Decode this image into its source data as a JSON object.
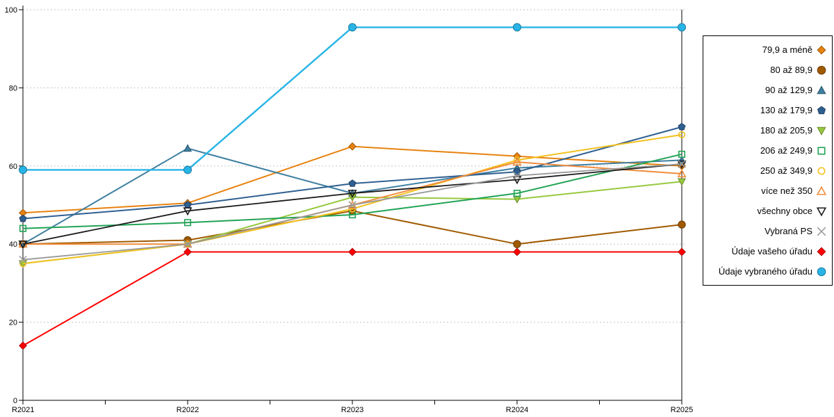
{
  "chart_data": {
    "type": "line",
    "title": "",
    "xlabel": "",
    "ylabel": "",
    "x_categories": [
      "R2021",
      "R2022",
      "R2023",
      "R2024",
      "R2025"
    ],
    "ylim": [
      0,
      100
    ],
    "yticks": [
      0,
      20,
      40,
      60,
      80,
      100
    ],
    "grid": "horizontal dashed gridlines at y ticks",
    "legend_position": "right, boxed, marker after label",
    "series": [
      {
        "name": "79,9 a méně",
        "color": "#E8820E",
        "marker": "diamond",
        "marker_fill": "solid",
        "values": [
          48,
          50.5,
          65,
          62.5,
          60
        ]
      },
      {
        "name": "80 až 89,9",
        "color": "#A05A00",
        "marker": "circle",
        "marker_fill": "solid",
        "values": [
          40,
          41,
          48.5,
          40,
          45
        ]
      },
      {
        "name": "90 až 129,9",
        "color": "#3E7FA0",
        "marker": "triangle-up",
        "marker_fill": "solid",
        "values": [
          40,
          64.5,
          53,
          59.5,
          61.5
        ]
      },
      {
        "name": "130 až 179,9",
        "color": "#2F5F91",
        "marker": "pentagon",
        "marker_fill": "solid",
        "values": [
          46.5,
          50,
          55.5,
          58.5,
          70
        ]
      },
      {
        "name": "180 až 205,9",
        "color": "#97C83E",
        "marker": "triangle-down",
        "marker_fill": "solid",
        "values": [
          35,
          40,
          52,
          51.5,
          56
        ]
      },
      {
        "name": "206 až 249,9",
        "color": "#21A355",
        "marker": "square",
        "marker_fill": "open",
        "values": [
          44,
          45.5,
          47.5,
          53,
          63
        ]
      },
      {
        "name": "250 až 349,9",
        "color": "#F2C11E",
        "marker": "circle",
        "marker_fill": "open",
        "values": [
          35,
          40,
          49,
          61.5,
          68
        ]
      },
      {
        "name": "více než 350",
        "color": "#F08C3C",
        "marker": "triangle-up",
        "marker_fill": "open",
        "values": [
          40,
          40,
          50,
          61,
          58
        ]
      },
      {
        "name": "všechny obce",
        "color": "#1A1A1A",
        "marker": "triangle-down",
        "marker_fill": "open",
        "line_width": 1.8,
        "values": [
          40,
          48.5,
          53,
          56.5,
          60.5
        ]
      },
      {
        "name": "Vybraná PS",
        "color": "#999999",
        "marker": "x",
        "marker_fill": "open",
        "line_width": 1.8,
        "values": [
          36,
          40,
          50,
          57.5,
          60.5
        ]
      },
      {
        "name": "Údaje vašeho úřadu",
        "color": "#FF0000",
        "marker": "diamond",
        "marker_fill": "solid",
        "values": [
          14,
          38,
          38,
          38,
          38
        ]
      },
      {
        "name": "Údaje vybraného úřadu",
        "color": "#28B4E6",
        "marker": "circle",
        "marker_fill": "solid",
        "marker_size": 5.5,
        "line_width": 2.4,
        "values": [
          59,
          59,
          95.5,
          95.5,
          95.5
        ]
      }
    ]
  }
}
